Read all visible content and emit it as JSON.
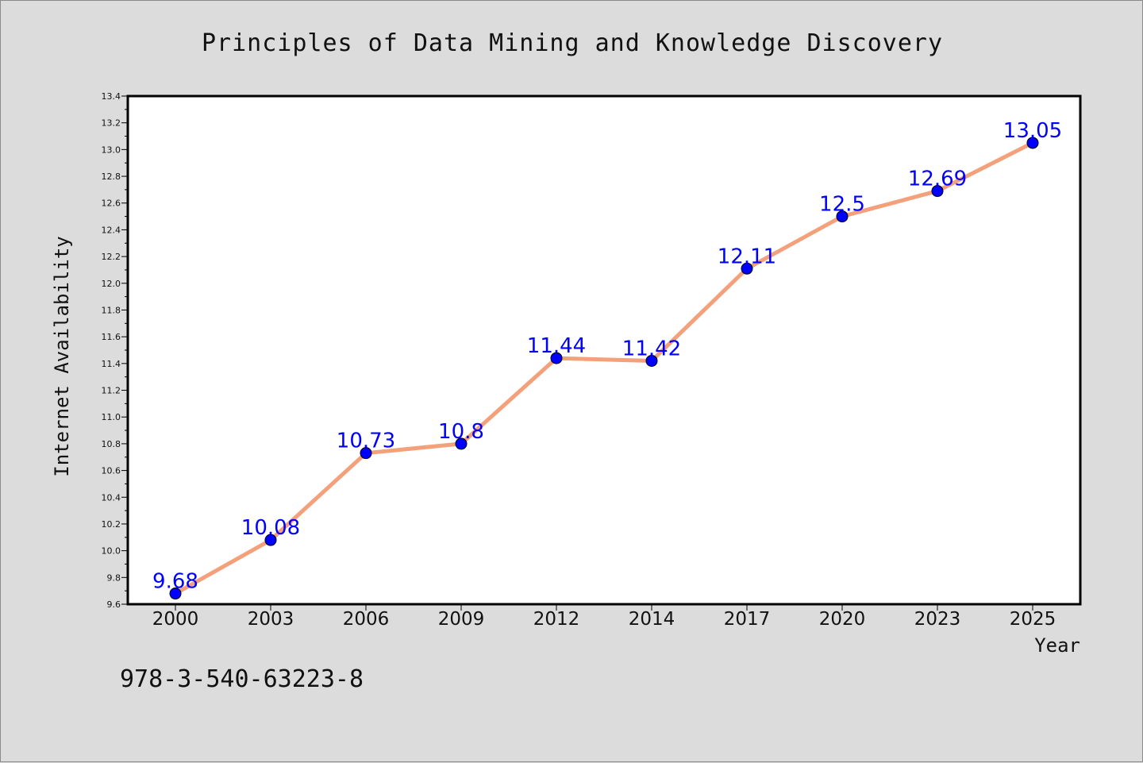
{
  "chart_data": {
    "type": "line",
    "title": "Principles of Data Mining and Knowledge Discovery",
    "xlabel": "Year",
    "ylabel": "Internet Availability",
    "categories": [
      "2000",
      "2003",
      "2006",
      "2009",
      "2012",
      "2014",
      "2017",
      "2020",
      "2023",
      "2025"
    ],
    "series": [
      {
        "values": [
          9.68,
          10.08,
          10.73,
          10.8,
          11.44,
          11.42,
          12.11,
          12.5,
          12.69,
          13.05
        ],
        "data_labels": [
          "9.68",
          "10.08",
          "10.73",
          "10.8",
          "11.44",
          "11.42",
          "12.11",
          "12.5",
          "12.69",
          "13.05"
        ],
        "line_color": "#f4a07a",
        "marker_color": "#0000ff"
      }
    ],
    "ylim": [
      9.6,
      13.4
    ],
    "yticks": [
      "9.6",
      "9.8",
      "10.0",
      "10.2",
      "10.4",
      "10.6",
      "10.8",
      "11.0",
      "11.2",
      "11.4",
      "11.6",
      "11.8",
      "12.0",
      "12.2",
      "12.4",
      "12.6",
      "12.8",
      "13.0",
      "13.2",
      "13.4"
    ],
    "grid": false,
    "legend": "none"
  },
  "footer_text": "978-3-540-63223-8"
}
